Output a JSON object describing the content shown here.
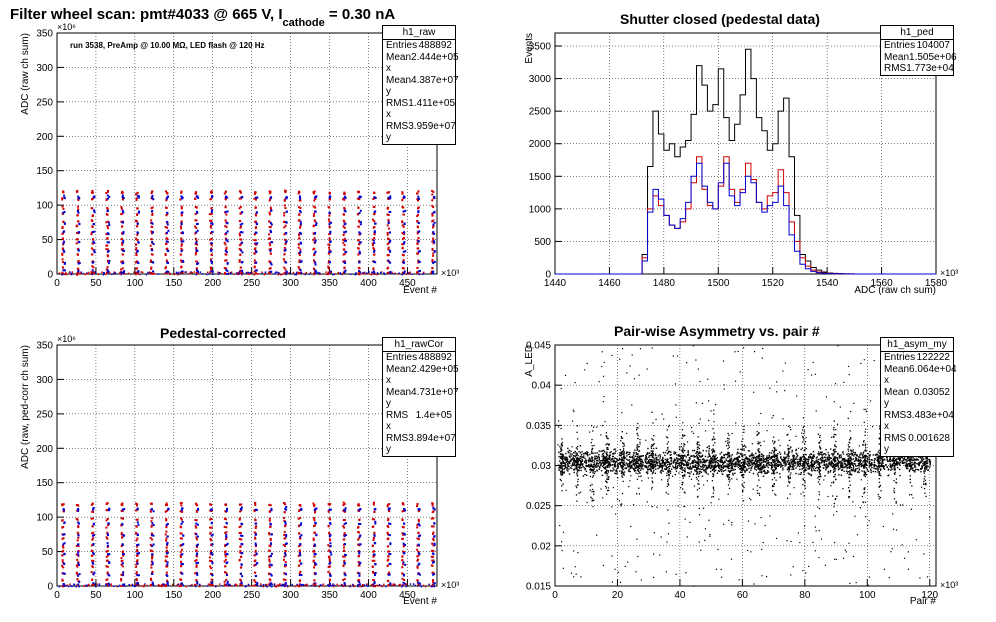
{
  "window": {
    "title": "Filter wheel scan: pmt#4033 @   665 V, I",
    "title_sub": "cathode",
    "title_tail": " = 0.30 nA"
  },
  "annotation": "run 3538, PreAmp @ 10.00 MΩ, LED flash @  120 Hz",
  "stats": {
    "raw": {
      "name": "h1_raw",
      "rows": [
        [
          "Entries",
          "488892"
        ],
        [
          "Mean x",
          "2.444e+05"
        ],
        [
          "Mean y",
          "4.387e+07"
        ],
        [
          "RMS x",
          "1.411e+05"
        ],
        [
          "RMS y",
          "3.959e+07"
        ]
      ]
    },
    "ped": {
      "name": "h1_ped",
      "rows": [
        [
          "Entries",
          "104007"
        ],
        [
          "Mean",
          "1.505e+06"
        ],
        [
          "RMS",
          "1.773e+04"
        ]
      ]
    },
    "rawCor": {
      "name": "h1_rawCor",
      "rows": [
        [
          "Entries",
          "488892"
        ],
        [
          "Mean x",
          "2.429e+05"
        ],
        [
          "Mean y",
          "4.731e+07"
        ],
        [
          "RMS x",
          "1.4e+05"
        ],
        [
          "RMS y",
          "3.894e+07"
        ]
      ]
    },
    "asym": {
      "name": "h1_asym_my",
      "rows": [
        [
          "Entries",
          "122222"
        ],
        [
          "Mean x",
          "6.064e+04"
        ],
        [
          "Mean y",
          "0.03052"
        ],
        [
          "RMS x",
          "3.483e+04"
        ],
        [
          "RMS y",
          "0.001628"
        ]
      ]
    }
  },
  "chart_data": [
    {
      "type": "scatter",
      "title": "",
      "xlabel": "Event #",
      "ylabel": "ADC (raw ch sum)",
      "x_exponent": "×10³",
      "y_exponent": "×10⁶",
      "xlim": [
        0,
        488
      ],
      "ylim": [
        0,
        350
      ],
      "xticks": [
        0,
        50,
        100,
        150,
        200,
        250,
        300,
        350,
        400,
        450
      ],
      "yticks": [
        0,
        50,
        100,
        150,
        200,
        250,
        300,
        350
      ],
      "grid": true,
      "series": [
        {
          "color": "#d00000",
          "levels": [
            120,
            110,
            98,
            88,
            78,
            70,
            60,
            52,
            45,
            38,
            30,
            20,
            10,
            3
          ]
        },
        {
          "color": "#0000d0",
          "levels": [
            113,
            92,
            75,
            62,
            48,
            34,
            18,
            5
          ]
        }
      ],
      "burst_period": 19,
      "burst_start": 5
    },
    {
      "type": "line",
      "title": "Shutter closed (pedestal data)",
      "xlabel": "ADC (raw ch sum)",
      "ylabel": "Events",
      "x_exponent": "×10³",
      "xlim": [
        1440,
        1580
      ],
      "ylim": [
        0,
        3700
      ],
      "xticks": [
        1440,
        1460,
        1480,
        1500,
        1520,
        1540,
        1560,
        1580
      ],
      "yticks": [
        0,
        500,
        1000,
        1500,
        2000,
        2500,
        3000,
        3500
      ],
      "grid": true,
      "x": [
        1465,
        1467,
        1469,
        1471,
        1473,
        1475,
        1477,
        1479,
        1481,
        1483,
        1485,
        1487,
        1489,
        1491,
        1493,
        1495,
        1497,
        1499,
        1501,
        1503,
        1505,
        1507,
        1509,
        1511,
        1513,
        1515,
        1517,
        1519,
        1521,
        1523,
        1525,
        1527,
        1529,
        1531,
        1533,
        1535,
        1537,
        1539,
        1541,
        1543,
        1545,
        1547,
        1549,
        1551
      ],
      "series_values": [
        {
          "color": "#000000",
          "values": [
            0,
            0,
            0,
            0,
            300,
            1650,
            2500,
            2150,
            1900,
            2000,
            1800,
            1950,
            2050,
            2450,
            3200,
            2900,
            2500,
            2600,
            3150,
            2400,
            2050,
            2300,
            2750,
            3450,
            3000,
            2400,
            2200,
            1900,
            2000,
            2500,
            2700,
            1800,
            900,
            300,
            200,
            100,
            60,
            30,
            15,
            10,
            5,
            2,
            1,
            0
          ]
        },
        {
          "color": "#d00000",
          "values": [
            0,
            0,
            0,
            0,
            250,
            1000,
            1200,
            1050,
            900,
            750,
            700,
            800,
            1000,
            1400,
            1800,
            1300,
            1050,
            1000,
            1350,
            1800,
            1300,
            1100,
            1300,
            1700,
            1450,
            1100,
            1000,
            1200,
            1250,
            1600,
            1250,
            800,
            500,
            250,
            120,
            60,
            30,
            15,
            10,
            5,
            3,
            2,
            1,
            0
          ]
        },
        {
          "color": "#0000d0",
          "values": [
            0,
            0,
            0,
            0,
            200,
            950,
            1300,
            1150,
            900,
            750,
            700,
            850,
            1100,
            1500,
            1700,
            1350,
            1100,
            1000,
            1400,
            1700,
            1200,
            1050,
            1250,
            1500,
            1400,
            1100,
            950,
            1050,
            1100,
            1350,
            1050,
            600,
            350,
            150,
            80,
            40,
            20,
            10,
            5,
            3,
            1,
            1,
            0,
            0
          ]
        }
      ]
    },
    {
      "type": "scatter",
      "title": "Pedestal-corrected",
      "xlabel": "Event #",
      "ylabel": "ADC (raw, ped-corr ch sum)",
      "x_exponent": "×10³",
      "y_exponent": "×10⁶",
      "xlim": [
        0,
        488
      ],
      "ylim": [
        0,
        350
      ],
      "xticks": [
        0,
        50,
        100,
        150,
        200,
        250,
        300,
        350,
        400,
        450
      ],
      "yticks": [
        0,
        50,
        100,
        150,
        200,
        250,
        300,
        350
      ],
      "grid": true,
      "series": [
        {
          "color": "#d00000",
          "levels": [
            120,
            110,
            98,
            88,
            78,
            70,
            60,
            52,
            45,
            38,
            30,
            20,
            10,
            3
          ]
        },
        {
          "color": "#0000d0",
          "levels": [
            113,
            92,
            75,
            62,
            48,
            34,
            18,
            5
          ]
        }
      ],
      "burst_period": 19,
      "burst_start": 5
    },
    {
      "type": "scatter",
      "title": "Pair-wise Asymmetry vs. pair #",
      "xlabel": "Pair #",
      "ylabel": "A_LED",
      "x_exponent": "×10³",
      "xlim": [
        0,
        122
      ],
      "ylim": [
        0.015,
        0.045
      ],
      "xticks": [
        0,
        20,
        40,
        60,
        80,
        100,
        120
      ],
      "yticks": [
        0.015,
        0.02,
        0.025,
        0.03,
        0.035,
        0.04,
        0.045
      ],
      "grid": true,
      "series": [
        {
          "color": "#000000",
          "center": 0.0305,
          "band": 0.0007
        }
      ],
      "spike_period": 4.85,
      "spike_start": 2
    }
  ]
}
